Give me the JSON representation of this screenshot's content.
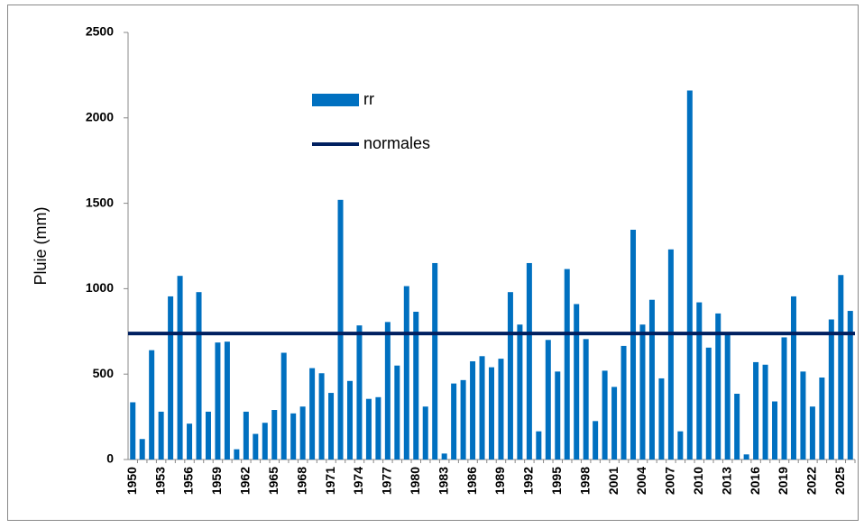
{
  "chart_data": {
    "type": "bar",
    "y_label": "Pluie (mm)",
    "categories": [
      "1950",
      null,
      null,
      "1953",
      null,
      null,
      "1956",
      null,
      null,
      "1959",
      null,
      null,
      "1962",
      null,
      null,
      "1965",
      null,
      null,
      "1968",
      null,
      null,
      "1971",
      null,
      null,
      "1974",
      null,
      null,
      "1977",
      null,
      null,
      "1980",
      null,
      null,
      "1983",
      null,
      null,
      "1986",
      null,
      null,
      "1989",
      null,
      null,
      "1992",
      null,
      null,
      "1995",
      null,
      null,
      "1998",
      null,
      null,
      "2001",
      null,
      null,
      "2004",
      null,
      null,
      "2007",
      null,
      null,
      "2010",
      null,
      null,
      "2013",
      null,
      null,
      "2016",
      null,
      null,
      "2019",
      null,
      null,
      "2022",
      null,
      null,
      "2025",
      null
    ],
    "series": [
      {
        "name": "rr",
        "color": "#0070c0",
        "values": [
          335,
          120,
          640,
          280,
          955,
          1075,
          210,
          980,
          280,
          685,
          690,
          60,
          280,
          150,
          215,
          290,
          625,
          270,
          310,
          535,
          505,
          390,
          1520,
          460,
          785,
          355,
          365,
          805,
          550,
          1015,
          865,
          310,
          1150,
          35,
          445,
          465,
          575,
          605,
          540,
          590,
          980,
          790,
          1150,
          165,
          700,
          515,
          1115,
          910,
          705,
          225,
          520,
          425,
          665,
          1345,
          790,
          935,
          475,
          1230,
          165,
          2160,
          920,
          655,
          855,
          735,
          385,
          30,
          570,
          555,
          340,
          715,
          955,
          515,
          310,
          480,
          820,
          1080,
          870
        ]
      },
      {
        "name": "normales",
        "color": "#002060",
        "value": 738
      }
    ],
    "ylim": [
      0,
      2500
    ],
    "yticks": [
      0,
      500,
      1000,
      1500,
      2000,
      2500
    ]
  }
}
